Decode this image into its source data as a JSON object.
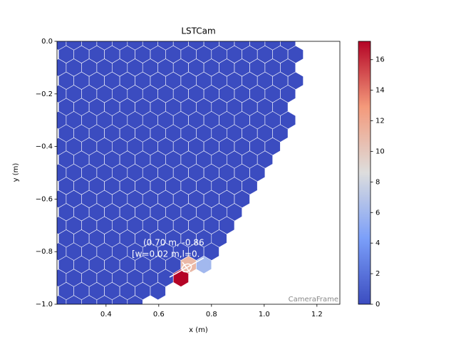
{
  "chart_data": {
    "type": "hexmap",
    "title": "LSTCam",
    "x_label": "x  (m)",
    "y_label": "y  (m)",
    "frame_label": "CameraFrame",
    "annotations": [
      "(0.70 m, -0.86",
      "[w=0.02 m,l=0."
    ],
    "colormap": "coolwarm",
    "xlim": [
      0.214,
      1.287
    ],
    "xticks": [
      0.4,
      0.6,
      0.8,
      {
        "value": 1,
        "label": "1.0"
      },
      1.2
    ],
    "ylim": [
      -1,
      0
    ],
    "yticks": [
      {
        "value": -1,
        "label": "−1.0"
      },
      {
        "value": -0.8,
        "label": "−0.8"
      },
      {
        "value": -0.6,
        "label": "−0.6"
      },
      {
        "value": -0.4,
        "label": "−0.4"
      },
      {
        "value": -0.2,
        "label": "−0.2"
      },
      {
        "value": 0,
        "label": "0.0"
      }
    ],
    "clim": [
      0,
      17.2
    ],
    "cticks": [
      0,
      2,
      4,
      6,
      8,
      10,
      12,
      14,
      16
    ],
    "rows": [
      {
        "y": 0,
        "x": [
          0.22,
          0.278,
          0.336,
          0.394,
          0.452,
          0.51,
          0.568,
          0.626,
          0.684,
          0.742,
          0.8,
          0.858,
          0.916,
          0.974,
          1.032,
          1.09
        ],
        "values": [
          0,
          0,
          0,
          0,
          0,
          0,
          0,
          0,
          0,
          0,
          0,
          0,
          0,
          0,
          0,
          0
        ]
      },
      {
        "y": -0.05,
        "x": [
          0.249,
          0.307,
          0.365,
          0.423,
          0.481,
          0.539,
          0.597,
          0.655,
          0.713,
          0.771,
          0.829,
          0.887,
          0.945,
          1.003,
          1.061,
          1.119
        ],
        "values": [
          0,
          0,
          0,
          0,
          0,
          0,
          0,
          0,
          0,
          0,
          0,
          0,
          0,
          0,
          0,
          0
        ]
      },
      {
        "y": -0.1,
        "x": [
          0.22,
          0.278,
          0.336,
          0.394,
          0.452,
          0.51,
          0.568,
          0.626,
          0.684,
          0.742,
          0.8,
          0.858,
          0.916,
          0.974,
          1.032,
          1.09
        ],
        "values": [
          0,
          0,
          0,
          0,
          0,
          0,
          0,
          0,
          0,
          0,
          0,
          0,
          0,
          0,
          0,
          0
        ]
      },
      {
        "y": -0.15,
        "x": [
          0.249,
          0.307,
          0.365,
          0.423,
          0.481,
          0.539,
          0.597,
          0.655,
          0.713,
          0.771,
          0.829,
          0.887,
          0.945,
          1.003,
          1.061,
          1.119
        ],
        "values": [
          0,
          0,
          0,
          0,
          0,
          0,
          0,
          0,
          0,
          0,
          0,
          0,
          0,
          0,
          0,
          0
        ]
      },
      {
        "y": -0.2,
        "x": [
          0.22,
          0.278,
          0.336,
          0.394,
          0.452,
          0.51,
          0.568,
          0.626,
          0.684,
          0.742,
          0.8,
          0.858,
          0.916,
          0.974,
          1.032,
          1.09
        ],
        "values": [
          0,
          0,
          0,
          0,
          0,
          0,
          0,
          0,
          0,
          0,
          0,
          0,
          0,
          0,
          0,
          0
        ]
      },
      {
        "y": -0.25,
        "x": [
          0.249,
          0.307,
          0.365,
          0.423,
          0.481,
          0.539,
          0.597,
          0.655,
          0.713,
          0.771,
          0.829,
          0.887,
          0.945,
          1.003,
          1.061
        ],
        "values": [
          0,
          0,
          0,
          0,
          0,
          0,
          0,
          0,
          0,
          0,
          0,
          0,
          0,
          0,
          0
        ]
      },
      {
        "y": -0.3,
        "x": [
          0.22,
          0.278,
          0.336,
          0.394,
          0.452,
          0.51,
          0.568,
          0.626,
          0.684,
          0.742,
          0.8,
          0.858,
          0.916,
          0.974,
          1.032,
          1.09
        ],
        "values": [
          0,
          0,
          0,
          0,
          0,
          0,
          0,
          0,
          0,
          0,
          0,
          0,
          0,
          0,
          0,
          0
        ]
      },
      {
        "y": -0.35,
        "x": [
          0.249,
          0.307,
          0.365,
          0.423,
          0.481,
          0.539,
          0.597,
          0.655,
          0.713,
          0.771,
          0.829,
          0.887,
          0.945,
          1.003,
          1.061
        ],
        "values": [
          0,
          0,
          0,
          0,
          0,
          0,
          0,
          0,
          0,
          0,
          0,
          0,
          0,
          0,
          0
        ]
      },
      {
        "y": -0.4,
        "x": [
          0.22,
          0.278,
          0.336,
          0.394,
          0.452,
          0.51,
          0.568,
          0.626,
          0.684,
          0.742,
          0.8,
          0.858,
          0.916,
          0.974,
          1.032
        ],
        "values": [
          0,
          0,
          0,
          0,
          0,
          0,
          0,
          0,
          0,
          0,
          0,
          0,
          0,
          0,
          0
        ]
      },
      {
        "y": -0.45,
        "x": [
          0.249,
          0.307,
          0.365,
          0.423,
          0.481,
          0.539,
          0.597,
          0.655,
          0.713,
          0.771,
          0.829,
          0.887,
          0.945,
          1.003
        ],
        "values": [
          0,
          0,
          0,
          0,
          0,
          0,
          0,
          0,
          0,
          0,
          0,
          0,
          0,
          0
        ]
      },
      {
        "y": -0.5,
        "x": [
          0.22,
          0.278,
          0.336,
          0.394,
          0.452,
          0.51,
          0.568,
          0.626,
          0.684,
          0.742,
          0.8,
          0.858,
          0.916,
          0.974
        ],
        "values": [
          0,
          0,
          0,
          0,
          0,
          0,
          0,
          0,
          0,
          0,
          0,
          0,
          0,
          0
        ]
      },
      {
        "y": -0.55,
        "x": [
          0.249,
          0.307,
          0.365,
          0.423,
          0.481,
          0.539,
          0.597,
          0.655,
          0.713,
          0.771,
          0.829,
          0.887,
          0.945
        ],
        "values": [
          0,
          0,
          0,
          0,
          0,
          0,
          0,
          0,
          0,
          0,
          0,
          0,
          0
        ]
      },
      {
        "y": -0.6,
        "x": [
          0.22,
          0.278,
          0.336,
          0.394,
          0.452,
          0.51,
          0.568,
          0.626,
          0.684,
          0.742,
          0.8,
          0.858,
          0.916
        ],
        "values": [
          0,
          0,
          0,
          0,
          0,
          0,
          0,
          0,
          0,
          0,
          0,
          0,
          0
        ]
      },
      {
        "y": -0.65,
        "x": [
          0.249,
          0.307,
          0.365,
          0.423,
          0.481,
          0.539,
          0.597,
          0.655,
          0.713,
          0.771,
          0.829,
          0.887
        ],
        "values": [
          0,
          0,
          0,
          0,
          0,
          0,
          0,
          0,
          0,
          0,
          0,
          0
        ]
      },
      {
        "y": -0.7,
        "x": [
          0.22,
          0.278,
          0.336,
          0.394,
          0.452,
          0.51,
          0.568,
          0.626,
          0.684,
          0.742,
          0.8,
          0.858
        ],
        "values": [
          0,
          0,
          0,
          0,
          0,
          0,
          0,
          0,
          0,
          0,
          0,
          0
        ]
      },
      {
        "y": -0.75,
        "x": [
          0.249,
          0.307,
          0.365,
          0.423,
          0.481,
          0.539,
          0.597,
          0.655,
          0.713,
          0.771,
          0.829
        ],
        "values": [
          0,
          0,
          0,
          0,
          0,
          0,
          0,
          0,
          0,
          0,
          0
        ]
      },
      {
        "y": -0.8,
        "x": [
          0.22,
          0.278,
          0.336,
          0.394,
          0.452,
          0.51,
          0.568,
          0.626,
          0.684,
          0.742,
          0.8
        ],
        "values": [
          0,
          0,
          0,
          0,
          0,
          0,
          0,
          0,
          0,
          0,
          0
        ]
      },
      {
        "y": -0.85,
        "x": [
          0.249,
          0.307,
          0.365,
          0.423,
          0.481,
          0.539,
          0.597,
          0.655,
          0.713,
          0.771
        ],
        "values": [
          0,
          0,
          0,
          0,
          0,
          0,
          0,
          0,
          11,
          6
        ]
      },
      {
        "y": -0.9,
        "x": [
          0.22,
          0.278,
          0.336,
          0.394,
          0.452,
          0.51,
          0.568,
          0.626,
          0.684
        ],
        "values": [
          0,
          0,
          0,
          0,
          0,
          0,
          0,
          0,
          17.2
        ]
      },
      {
        "y": -0.95,
        "x": [
          0.249,
          0.307,
          0.365,
          0.423,
          0.481,
          0.539,
          0.597
        ],
        "values": [
          0,
          0,
          0,
          0,
          0,
          0,
          0
        ]
      },
      {
        "y": -1,
        "x": [
          0.22,
          0.278,
          0.336,
          0.394,
          0.452,
          0.51
        ],
        "values": [
          0,
          0,
          0,
          0,
          0,
          0
        ]
      }
    ]
  }
}
